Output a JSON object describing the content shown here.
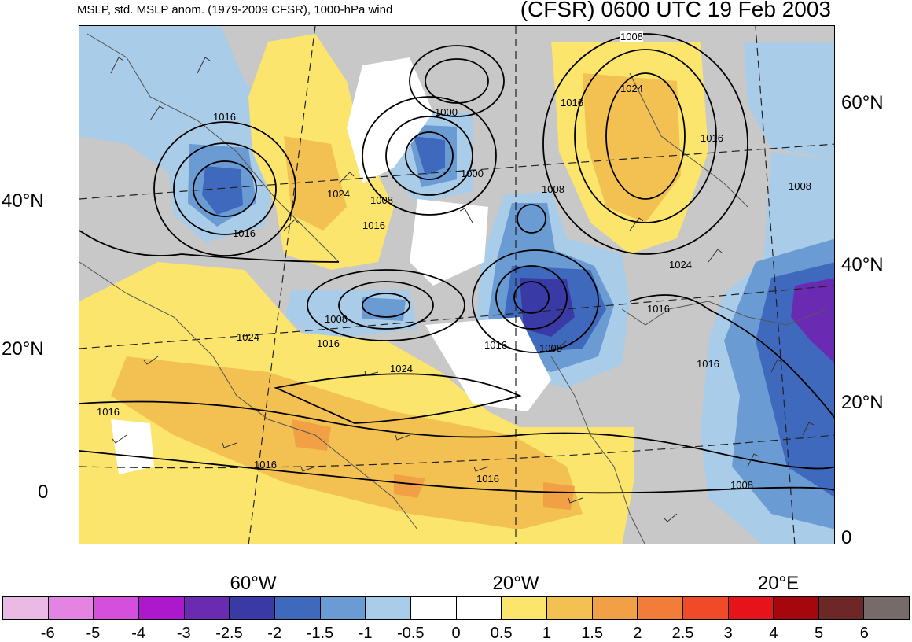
{
  "header": {
    "left_title": "MSLP, std. MSLP anom. (1979-2009 CFSR), 1000-hPa wind",
    "right_title": "(CFSR) 0600 UTC 19 Feb 2003"
  },
  "axes": {
    "left_lat_labels": [
      "40°N",
      "20°N",
      "0"
    ],
    "right_lat_labels": [
      "60°N",
      "40°N",
      "20°N",
      "0"
    ],
    "lon_labels": [
      "60°W",
      "20°W",
      "20°E"
    ]
  },
  "isobar_labels": [
    "1008",
    "1024",
    "1016",
    "1016",
    "1000",
    "1000",
    "1016",
    "1008",
    "1016",
    "1024",
    "1016",
    "1008",
    "1024",
    "1008",
    "1016",
    "1016",
    "1016",
    "1008",
    "1008",
    "1024",
    "1016",
    "1024",
    "1016",
    "1016",
    "1016",
    "1008"
  ],
  "colorbar": {
    "colors": [
      "#ebb9e6",
      "#e583e3",
      "#d44fdb",
      "#ad18cf",
      "#6a2bb2",
      "#3a3aa6",
      "#3f69bd",
      "#6a9bd2",
      "#a9cce8",
      "#ffffff",
      "#ffffff",
      "#fbe56c",
      "#f3c052",
      "#f2a045",
      "#f27d3a",
      "#ef4b29",
      "#e6141a",
      "#a5070d",
      "#6e2727",
      "#766a6a"
    ],
    "labels": [
      "-6",
      "-5",
      "-4",
      "-3",
      "-2.5",
      "-2",
      "-1.5",
      "-1",
      "-0.5",
      "0",
      "0.5",
      "1",
      "1.5",
      "2",
      "2.5",
      "3",
      "4",
      "5",
      "6"
    ]
  }
}
